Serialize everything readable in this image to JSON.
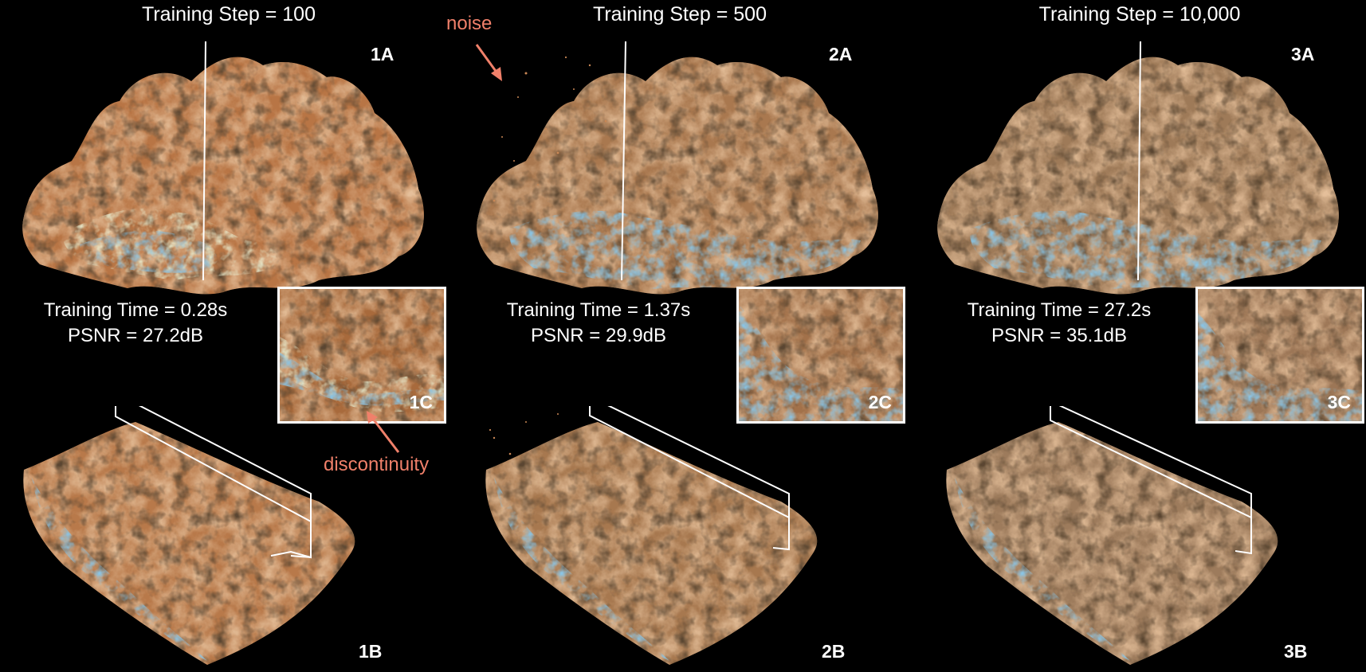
{
  "columns": [
    {
      "title": "Training Step = 100",
      "top_label": "1A",
      "bottom_label": "1B",
      "inset_label": "1C",
      "time": "Training Time = 0.28s",
      "psnr": "PSNR = 27.2dB"
    },
    {
      "title": "Training Step = 500",
      "top_label": "2A",
      "bottom_label": "2B",
      "inset_label": "2C",
      "time": "Training Time = 1.37s",
      "psnr": "PSNR = 29.9dB"
    },
    {
      "title": "Training Step = 10,000",
      "top_label": "3A",
      "bottom_label": "3B",
      "inset_label": "3C",
      "time": "Training Time = 27.2s",
      "psnr": "PSNR = 35.1dB"
    }
  ],
  "annotations": {
    "noise": "noise",
    "discontinuity": "discontinuity"
  },
  "colors": {
    "background": "#000000",
    "volume": "#c98755",
    "volume_dark": "#3a220f",
    "high_value": "#3f8ec4",
    "mid_value": "#cfe0a8",
    "annotation": "#f0806a",
    "frame": "#ffffff"
  }
}
